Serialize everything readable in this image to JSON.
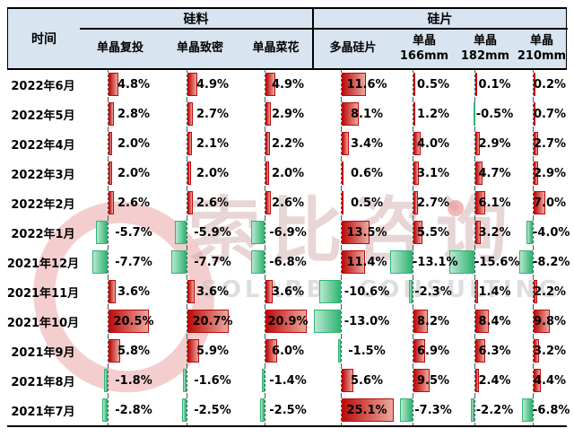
{
  "header": {
    "time_label": "时间",
    "groups": [
      {
        "label": "硅料",
        "columns": [
          "单晶复投",
          "单晶致密",
          "单晶菜花"
        ]
      },
      {
        "label": "硅片",
        "columns": [
          "多晶硅片",
          "单晶\n166mm",
          "单晶\n182mm",
          "单晶\n210mm"
        ]
      }
    ]
  },
  "watermark": {
    "logo_text": "索比咨询",
    "subtext": "SOLARBE CONSULTING"
  },
  "colors": {
    "header_bg": "#d8e4f0",
    "positive_bar_base": "#bd0b0b",
    "positive_bar_tip": "#eca89e",
    "negative_bar_base": "#2fb573",
    "negative_bar_tip": "#b9e7d0",
    "axis_line": "#555555"
  },
  "chart_data": {
    "type": "table",
    "title": "",
    "value_format": "percent",
    "column_groups": [
      {
        "label": "硅料",
        "span": 3
      },
      {
        "label": "硅片",
        "span": 4
      }
    ],
    "columns": [
      "单晶复投",
      "单晶致密",
      "单晶菜花",
      "多晶硅片",
      "单晶166mm",
      "单晶182mm",
      "单晶210mm"
    ],
    "rows": [
      {
        "month": "2022年6月",
        "values": [
          4.8,
          4.9,
          4.9,
          11.6,
          0.5,
          0.1,
          0.2
        ]
      },
      {
        "month": "2022年5月",
        "values": [
          2.8,
          2.7,
          2.9,
          8.1,
          1.2,
          -0.5,
          0.7
        ]
      },
      {
        "month": "2022年4月",
        "values": [
          2.0,
          2.1,
          2.2,
          3.4,
          4.0,
          2.9,
          2.7
        ]
      },
      {
        "month": "2022年3月",
        "values": [
          2.0,
          2.0,
          2.0,
          0.6,
          3.1,
          4.7,
          2.9
        ]
      },
      {
        "month": "2022年2月",
        "values": [
          2.6,
          2.6,
          2.6,
          0.5,
          2.7,
          6.1,
          7.0
        ]
      },
      {
        "month": "2022年1月",
        "values": [
          -5.7,
          -5.9,
          -6.9,
          13.5,
          5.5,
          3.2,
          -4.0
        ]
      },
      {
        "month": "2021年12月",
        "values": [
          -7.7,
          -7.7,
          -6.8,
          11.4,
          -13.1,
          -15.6,
          -8.2
        ]
      },
      {
        "month": "2021年11月",
        "values": [
          3.6,
          3.6,
          3.6,
          -10.6,
          -2.3,
          1.4,
          2.2
        ]
      },
      {
        "month": "2021年10月",
        "values": [
          20.5,
          20.7,
          20.9,
          -13.0,
          8.2,
          8.4,
          9.8
        ]
      },
      {
        "month": "2021年9月",
        "values": [
          5.8,
          5.9,
          6.0,
          -1.5,
          6.9,
          6.3,
          3.2
        ]
      },
      {
        "month": "2021年8月",
        "values": [
          -1.8,
          -1.6,
          -1.4,
          5.6,
          9.5,
          2.4,
          4.4
        ]
      },
      {
        "month": "2021年7月",
        "values": [
          -2.8,
          -2.5,
          -2.5,
          25.1,
          -7.3,
          -2.2,
          -6.8
        ]
      }
    ]
  }
}
